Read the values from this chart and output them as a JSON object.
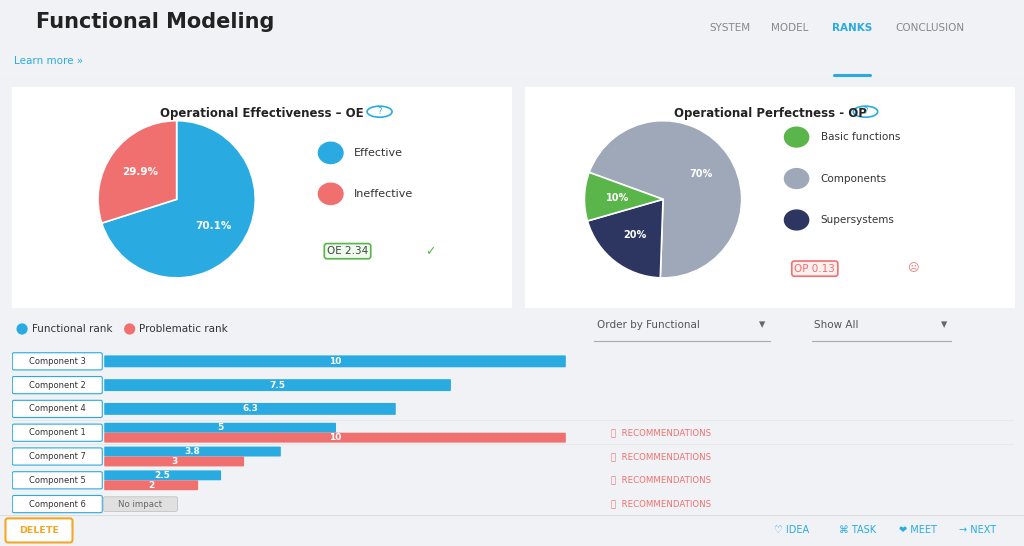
{
  "title": "Functional Modeling",
  "background_color": "#f0f2f5",
  "panel_color": "#ffffff",
  "oe_title": "Operational Effectiveness – OE",
  "oe_values": [
    70.1,
    29.9
  ],
  "oe_labels": [
    "Effective",
    "Ineffective"
  ],
  "oe_colors": [
    "#29abe2",
    "#f07070"
  ],
  "oe_score": "OE 2.34",
  "op_title": "Operational Perfectness - OP",
  "op_values": [
    70,
    20,
    10
  ],
  "op_labels": [
    "Basic functions",
    "Components",
    "Supersystems"
  ],
  "op_legend_order": [
    "Basic functions",
    "Components",
    "Supersystems"
  ],
  "op_colors_pie": [
    "#9ea8b8",
    "#2d3561",
    "#5ab54b"
  ],
  "op_colors_legend": [
    "#5ab54b",
    "#9ea8b8",
    "#2d3561"
  ],
  "op_score": "OP 0.13",
  "components": [
    "Component 3",
    "Component 2",
    "Component 4",
    "Component 1",
    "Component 7",
    "Component 5",
    "Component 6"
  ],
  "functional_ranks": [
    10,
    7.5,
    6.3,
    5,
    3.8,
    2.5,
    null
  ],
  "problematic_ranks": [
    null,
    null,
    null,
    10,
    3,
    2,
    null
  ],
  "has_recommendations": [
    false,
    false,
    false,
    true,
    true,
    true,
    true
  ],
  "no_impact": [
    false,
    false,
    false,
    false,
    false,
    false,
    true
  ],
  "functional_color": "#29abe2",
  "problematic_color": "#f07070",
  "max_bar": 10,
  "order_label": "Order by Functional",
  "show_label": "Show All",
  "nav_items": [
    "SYSTEM",
    "MODEL",
    "RANKS",
    "CONCLUSION"
  ],
  "nav_active": "RANKS"
}
